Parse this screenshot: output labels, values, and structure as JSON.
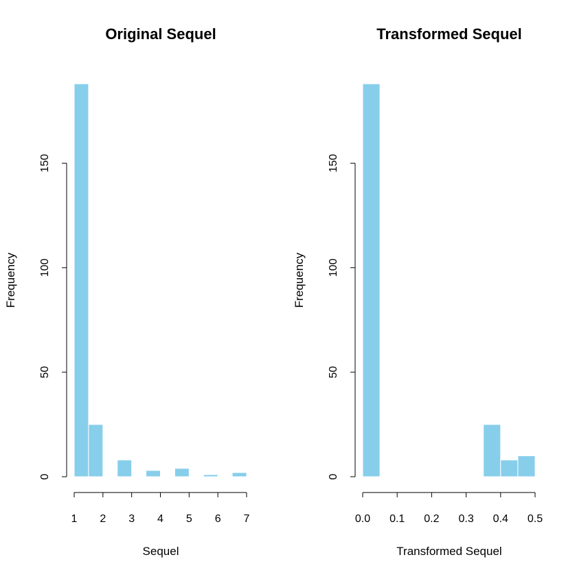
{
  "chart_data": [
    {
      "type": "bar",
      "title": "Original Sequel",
      "xlabel": "Sequel",
      "ylabel": "Frequency",
      "bar_color": "#87ceeb",
      "bins": [
        {
          "x0": 1.0,
          "x1": 1.5,
          "count": 188
        },
        {
          "x0": 1.5,
          "x1": 2.0,
          "count": 25
        },
        {
          "x0": 2.0,
          "x1": 2.5,
          "count": 0
        },
        {
          "x0": 2.5,
          "x1": 3.0,
          "count": 8
        },
        {
          "x0": 3.0,
          "x1": 3.5,
          "count": 0
        },
        {
          "x0": 3.5,
          "x1": 4.0,
          "count": 3
        },
        {
          "x0": 4.0,
          "x1": 4.5,
          "count": 0
        },
        {
          "x0": 4.5,
          "x1": 5.0,
          "count": 4
        },
        {
          "x0": 5.0,
          "x1": 5.5,
          "count": 0
        },
        {
          "x0": 5.5,
          "x1": 6.0,
          "count": 1
        },
        {
          "x0": 6.0,
          "x1": 6.5,
          "count": 0
        },
        {
          "x0": 6.5,
          "x1": 7.0,
          "count": 2
        }
      ],
      "xlim": [
        1,
        7
      ],
      "ylim": [
        0,
        188
      ],
      "x_ticks": [
        1,
        2,
        3,
        4,
        5,
        6,
        7
      ],
      "x_tick_labels": [
        "1",
        "2",
        "3",
        "4",
        "5",
        "6",
        "7"
      ],
      "y_ticks": [
        0,
        50,
        100,
        150
      ],
      "y_tick_labels": [
        "0",
        "50",
        "100",
        "150"
      ]
    },
    {
      "type": "bar",
      "title": "Transformed Sequel",
      "xlabel": "Transformed Sequel",
      "ylabel": "Frequency",
      "bar_color": "#87ceeb",
      "bins": [
        {
          "x0": 0.0,
          "x1": 0.05,
          "count": 188
        },
        {
          "x0": 0.05,
          "x1": 0.1,
          "count": 0
        },
        {
          "x0": 0.1,
          "x1": 0.15,
          "count": 0
        },
        {
          "x0": 0.15,
          "x1": 0.2,
          "count": 0
        },
        {
          "x0": 0.2,
          "x1": 0.25,
          "count": 0
        },
        {
          "x0": 0.25,
          "x1": 0.3,
          "count": 0
        },
        {
          "x0": 0.3,
          "x1": 0.35,
          "count": 0
        },
        {
          "x0": 0.35,
          "x1": 0.4,
          "count": 25
        },
        {
          "x0": 0.4,
          "x1": 0.45,
          "count": 8
        },
        {
          "x0": 0.45,
          "x1": 0.5,
          "count": 10
        }
      ],
      "xlim": [
        0,
        0.5
      ],
      "ylim": [
        0,
        188
      ],
      "x_ticks": [
        0.0,
        0.1,
        0.2,
        0.3,
        0.4,
        0.5
      ],
      "x_tick_labels": [
        "0.0",
        "0.1",
        "0.2",
        "0.3",
        "0.4",
        "0.5"
      ],
      "y_ticks": [
        0,
        50,
        100,
        150
      ],
      "y_tick_labels": [
        "0",
        "50",
        "100",
        "150"
      ]
    }
  ]
}
